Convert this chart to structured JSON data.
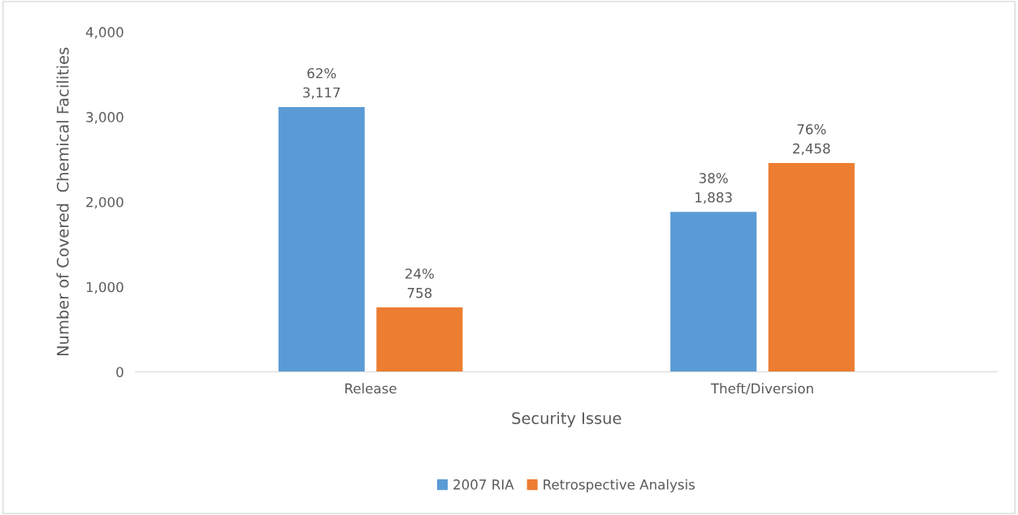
{
  "chart_data": {
    "type": "bar",
    "xlabel": "Security Issue",
    "ylabel": "Number of Covered  Chemical Facilities",
    "categories": [
      "Release",
      "Theft/Diversion"
    ],
    "series": [
      {
        "name": "2007 RIA",
        "color": "#5b9bd5",
        "values": [
          3117,
          1883
        ],
        "value_labels": [
          "62%\n3,117",
          "38%\n1,883"
        ]
      },
      {
        "name": "Retrospective Analysis",
        "color": "#ed7d31",
        "values": [
          758,
          2458
        ],
        "value_labels": [
          "24%\n758",
          "76%\n2,458"
        ]
      }
    ],
    "ylim": [
      0,
      4000
    ],
    "yticks": [
      {
        "value": 0,
        "label": "0"
      },
      {
        "value": 1000,
        "label": "1,000"
      },
      {
        "value": 2000,
        "label": "2,000"
      },
      {
        "value": 3000,
        "label": "3,000"
      },
      {
        "value": 4000,
        "label": "4,000"
      }
    ],
    "grid": false,
    "legend": "bottom"
  }
}
